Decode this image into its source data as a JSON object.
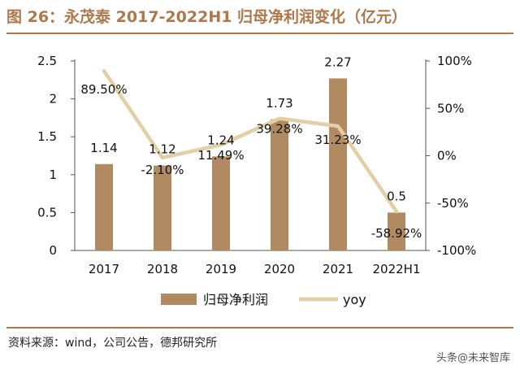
{
  "title": "图 26：永茂泰 2017-2022H1 归母净利润变化（亿元）",
  "source": "资料来源：wind，公司公告，德邦研究所",
  "watermark": "头条@未来智库",
  "colors": {
    "bar": "#b28a62",
    "line": "#e3cfa5",
    "accent": "#b0774a"
  },
  "chart_data": {
    "type": "bar",
    "title": "",
    "categories": [
      "2017",
      "2018",
      "2019",
      "2020",
      "2021",
      "2022H1"
    ],
    "series": [
      {
        "name": "归母净利润",
        "type": "bar",
        "axis": "left",
        "values": [
          1.14,
          1.12,
          1.24,
          1.73,
          2.27,
          0.5
        ],
        "labels": [
          "1.14",
          "1.12",
          "1.24",
          "1.73",
          "2.27",
          "0.5"
        ]
      },
      {
        "name": "yoy",
        "type": "line",
        "axis": "right",
        "values": [
          89.5,
          -2.1,
          11.49,
          39.28,
          31.23,
          -58.92
        ],
        "labels": [
          "89.50%",
          "-2.10%",
          "11.49%",
          "39.28%",
          "31.23%",
          "-58.92%"
        ]
      }
    ],
    "left_axis": {
      "ylim": [
        0,
        2.5
      ],
      "ticks": [
        "0",
        "0.5",
        "1",
        "1.5",
        "2",
        "2.5"
      ]
    },
    "right_axis": {
      "ylim": [
        -100,
        100
      ],
      "ticks": [
        "-100%",
        "-50%",
        "0%",
        "50%",
        "100%"
      ]
    },
    "legend": {
      "position": "bottom",
      "items": [
        "归母净利润",
        "yoy"
      ]
    },
    "grid": false
  }
}
